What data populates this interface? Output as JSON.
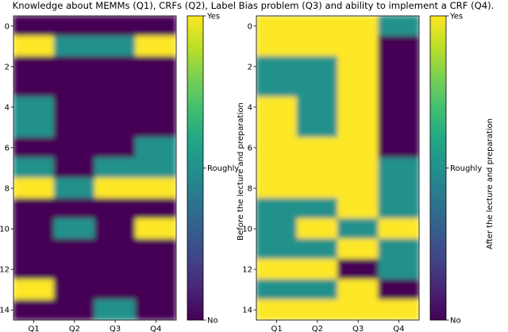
{
  "title": "Knowledge about MEMMs (Q1), CRFs (Q2), Label Bias problem (Q3) and ability to implement a CRF (Q4).",
  "chart_data": [
    {
      "type": "heatmap",
      "categories": [
        "Q1",
        "Q2",
        "Q3",
        "Q4"
      ],
      "rows": [
        0,
        1,
        2,
        3,
        4,
        5,
        6,
        7,
        8,
        9,
        10,
        11,
        12,
        13,
        14
      ],
      "y_ticks": [
        0,
        2,
        4,
        6,
        8,
        10,
        12,
        14
      ],
      "scale": {
        "0": "No",
        "1": "Roughly",
        "2": "Yes"
      },
      "values": [
        [
          0,
          0,
          0,
          0
        ],
        [
          2,
          1,
          1,
          2
        ],
        [
          0,
          0,
          0,
          0
        ],
        [
          0,
          0,
          0,
          0
        ],
        [
          1,
          0,
          0,
          0
        ],
        [
          1,
          0,
          0,
          0
        ],
        [
          0,
          0,
          0,
          1
        ],
        [
          1,
          0,
          1,
          1
        ],
        [
          2,
          1,
          2,
          2
        ],
        [
          0,
          0,
          0,
          0
        ],
        [
          0,
          1,
          0,
          2
        ],
        [
          0,
          0,
          0,
          0
        ],
        [
          0,
          0,
          0,
          0
        ],
        [
          2,
          0,
          0,
          0
        ],
        [
          0,
          0,
          1,
          0
        ]
      ],
      "colorbar_label": "Before the lecture and preparation",
      "colorbar_ticks": [
        "No",
        "Roughly",
        "Yes"
      ]
    },
    {
      "type": "heatmap",
      "categories": [
        "Q1",
        "Q2",
        "Q3",
        "Q4"
      ],
      "rows": [
        0,
        1,
        2,
        3,
        4,
        5,
        6,
        7,
        8,
        9,
        10,
        11,
        12,
        13,
        14
      ],
      "y_ticks": [
        0,
        2,
        4,
        6,
        8,
        10,
        12,
        14
      ],
      "scale": {
        "0": "No",
        "1": "Roughly",
        "2": "Yes"
      },
      "values": [
        [
          2,
          2,
          2,
          1
        ],
        [
          2,
          2,
          2,
          0
        ],
        [
          1,
          1,
          2,
          0
        ],
        [
          1,
          1,
          2,
          0
        ],
        [
          2,
          1,
          2,
          0
        ],
        [
          2,
          1,
          2,
          0
        ],
        [
          2,
          2,
          2,
          0
        ],
        [
          2,
          2,
          2,
          1
        ],
        [
          2,
          2,
          2,
          1
        ],
        [
          1,
          1,
          2,
          1
        ],
        [
          1,
          2,
          1,
          2
        ],
        [
          1,
          1,
          2,
          1
        ],
        [
          2,
          2,
          0,
          1
        ],
        [
          1,
          1,
          2,
          0
        ],
        [
          2,
          2,
          2,
          2
        ]
      ],
      "colorbar_label": "After the lecture and preparation",
      "colorbar_ticks": [
        "No",
        "Roughly",
        "Yes"
      ]
    }
  ],
  "colors": {
    "no": "#440154",
    "roughly": "#21918c",
    "yes": "#fde725"
  }
}
